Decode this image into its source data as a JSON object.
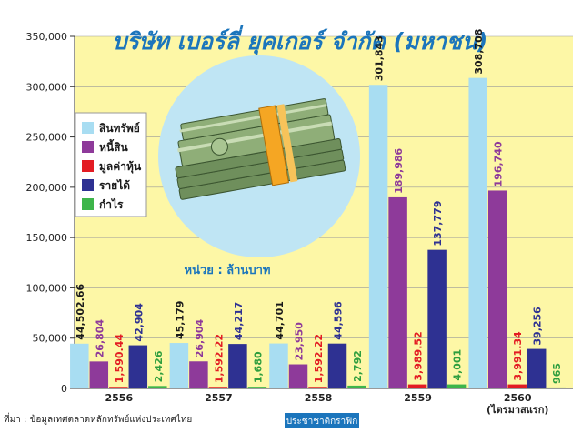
{
  "chart_data": {
    "type": "bar",
    "title": "บริษัท เบอร์ลี่ ยุคเกอร์ จำกัด (มหาชน)",
    "unit_label": "หน่วย : ล้านบาท",
    "categories": [
      "2556",
      "2557",
      "2558",
      "2559",
      "2560"
    ],
    "category_notes": [
      "",
      "",
      "",
      "",
      "(ไตรมาสแรก)"
    ],
    "yticks": [
      "0",
      "50,000",
      "100,000",
      "150,000",
      "200,000",
      "250,000",
      "300,000",
      "350,000"
    ],
    "ylim": [
      0,
      350000
    ],
    "series": [
      {
        "name": "สินทรัพย์",
        "color": "#a8ddf2",
        "label_color": "#1a1a1a",
        "values": [
          44502.66,
          45179,
          44701,
          301843,
          308708
        ],
        "labels": [
          "44,502.66",
          "45,179",
          "44,701",
          "301,843",
          "308,708"
        ]
      },
      {
        "name": "หนี้สิน",
        "color": "#8e3a9a",
        "label_color": "#8e3a9a",
        "values": [
          26804,
          26904,
          23950,
          189986,
          196740
        ],
        "labels": [
          "26,804",
          "26,904",
          "23,950",
          "189,986",
          "196,740"
        ]
      },
      {
        "name": "มูลค่าหุ้น",
        "color": "#e31c23",
        "label_color": "#e31c23",
        "values": [
          1590.44,
          1592.22,
          1592.22,
          3989.52,
          3991.34
        ],
        "labels": [
          "1,590.44",
          "1,592.22",
          "1,592.22",
          "3,989.52",
          "3,991.34"
        ]
      },
      {
        "name": "รายได้",
        "color": "#2e3192",
        "label_color": "#2e3192",
        "values": [
          42904,
          44217,
          44596,
          137779,
          39256
        ],
        "labels": [
          "42,904",
          "44,217",
          "44,596",
          "137,779",
          "39,256"
        ]
      },
      {
        "name": "กำไร",
        "color": "#3db54a",
        "label_color": "#2e9e3e",
        "values": [
          2426,
          1680,
          2792,
          4001,
          965
        ],
        "labels": [
          "2,426",
          "1,680",
          "2,792",
          "4,001",
          "965"
        ]
      }
    ],
    "legend_position": "left",
    "grid": true
  },
  "source_text": "ที่มา : ข้อมูลเทศตลาดหลักทรัพย์แห่งประเทศไทย",
  "credit_text": "ประชาชาติกราฟิก",
  "colors": {
    "plot_background": "#fdf7a6",
    "title_color": "#1b75bc",
    "unit_color": "#1b75bc",
    "credit_background": "#1b75bc",
    "circle": "#bfe5f4"
  },
  "illustration": "money-stack-icon"
}
